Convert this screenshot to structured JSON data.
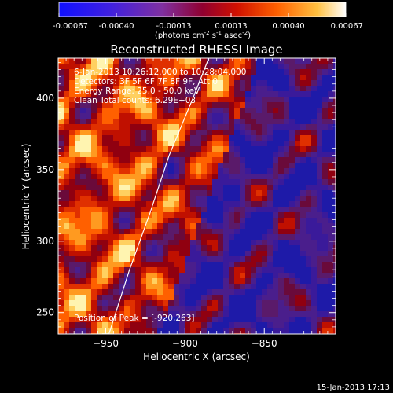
{
  "chart_data": {
    "type": "heatmap",
    "title": "Reconstructed RHESSI Image",
    "xlabel": "Heliocentric X (arcsec)",
    "ylabel": "Heliocentric Y (arcsec)",
    "xlim": [
      -980,
      -805
    ],
    "ylim": [
      235,
      428
    ],
    "xticks": [
      -950,
      -900,
      -850
    ],
    "yticks": [
      250,
      300,
      350,
      400
    ],
    "colorbar": {
      "ticks": [
        "-0.00067",
        "-0.00040",
        "-0.00013",
        "0.00013",
        "0.00040",
        "0.00067"
      ],
      "range": [
        -0.00067,
        0.00067
      ],
      "units_text": "(photons cm",
      "units_sup1": "-2",
      "units_s": " s",
      "units_sup2": "-1",
      "units_asec": " asec",
      "units_sup3": "-2",
      "units_close": ")"
    },
    "annotations": [
      "6-Jan-2013 10:26:12.000 to 10:28:04.000",
      "Detectors: 3F 5F 6F 7F 8F 9F, Att 0",
      "Energy Range: 25.0 - 50.0 keV",
      "Clean     Total counts: 6.29E+03"
    ],
    "peak_label": "Position of Peak = [-920,263]",
    "peak": [
      -920,
      263
    ],
    "limb_arc": [
      [
        -948,
        235
      ],
      [
        -935,
        280
      ],
      [
        -922,
        320
      ],
      [
        -910,
        360
      ],
      [
        -895,
        400
      ],
      [
        -885,
        428
      ]
    ]
  },
  "footer": {
    "timestamp": "15-Jan-2013 17:13"
  }
}
